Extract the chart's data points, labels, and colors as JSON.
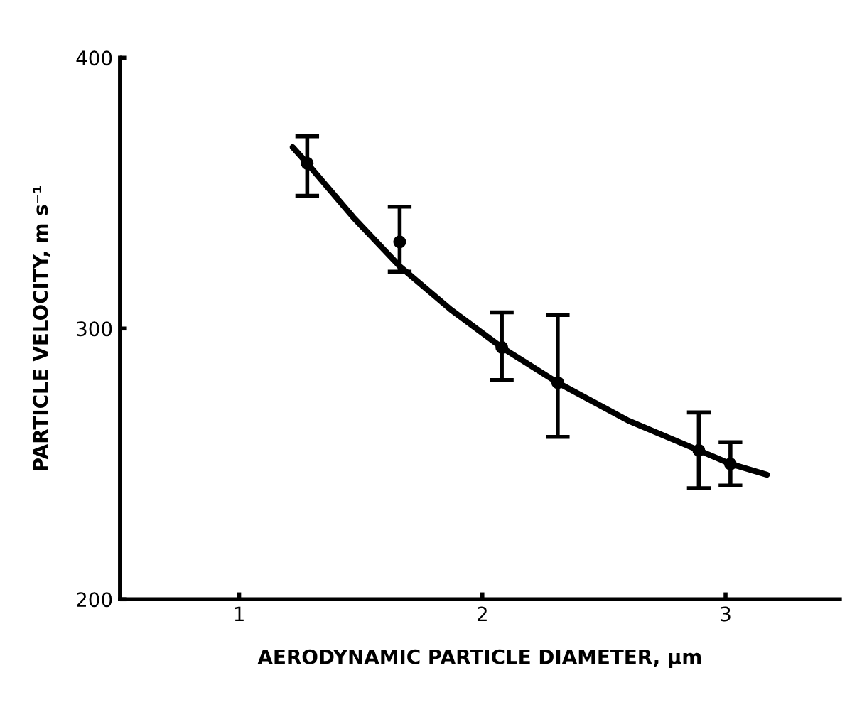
{
  "chart_data": {
    "type": "scatter",
    "xlabel": "AERODYNAMIC PARTICLE DIAMETER, µm",
    "ylabel": "PARTICLE VELOCITY, m s⁻¹",
    "xlim": [
      0.51,
      3.47
    ],
    "ylim": [
      200,
      400
    ],
    "xticks": [
      1,
      2,
      3
    ],
    "yticks": [
      200,
      300,
      400
    ],
    "grid": false,
    "legend": false,
    "series": [
      {
        "color": "#000000",
        "marker": "circle",
        "x": [
          1.28,
          1.66,
          2.08,
          2.31,
          2.89,
          3.02
        ],
        "values": [
          361,
          332,
          293,
          280,
          255,
          250
        ],
        "errors": [
          [
            349,
            371
          ],
          [
            321,
            345
          ],
          [
            281,
            306
          ],
          [
            260,
            305
          ],
          [
            241,
            269
          ],
          [
            242,
            258
          ]
        ]
      },
      {
        "type": "line",
        "color": "#000000",
        "marker": "none",
        "line_style": "solid",
        "x": [
          1.22,
          1.28,
          1.47,
          1.66,
          1.87,
          2.08,
          2.31,
          2.6,
          2.89,
          3.02,
          3.17
        ],
        "values": [
          367,
          361,
          341,
          323,
          307,
          293,
          280,
          266,
          255,
          250,
          246
        ]
      }
    ]
  }
}
